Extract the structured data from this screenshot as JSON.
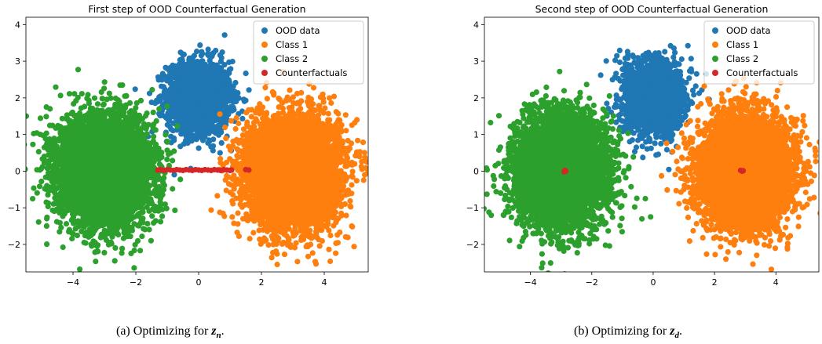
{
  "chart_data": [
    {
      "type": "scatter",
      "title": "First step of OOD Counterfactual Generation",
      "xlabel": "",
      "ylabel": "",
      "xlim": [
        -5.5,
        5.4
      ],
      "ylim": [
        -2.75,
        4.2
      ],
      "xticks": [
        -4,
        -2,
        0,
        2,
        4
      ],
      "yticks": [
        -2,
        -1,
        0,
        1,
        2,
        3,
        4
      ],
      "grid": false,
      "legend_position": "top-right",
      "series": [
        {
          "name": "OOD data",
          "color": "#1f77b4",
          "center": [
            0,
            2
          ],
          "spread": [
            0.5,
            0.5
          ],
          "count": 1800
        },
        {
          "name": "Class 1",
          "color": "#ff7f0e",
          "center": [
            3,
            0
          ],
          "spread": [
            0.72,
            0.72
          ],
          "count": 6000
        },
        {
          "name": "Class 2",
          "color": "#2ca02c",
          "center": [
            -3,
            0
          ],
          "spread": [
            0.72,
            0.72
          ],
          "count": 6000
        },
        {
          "name": "Counterfactuals",
          "color": "#d62728",
          "points": [
            [
              -1.3,
              0.03
            ],
            [
              -1.2,
              0.04
            ],
            [
              -1.1,
              0.02
            ],
            [
              -1.0,
              0.04
            ],
            [
              -0.9,
              0.03
            ],
            [
              -0.8,
              0.02
            ],
            [
              -0.7,
              0.04
            ],
            [
              -0.6,
              0.03
            ],
            [
              -0.5,
              0.02
            ],
            [
              -0.4,
              0.04
            ],
            [
              -0.3,
              0.03
            ],
            [
              -0.2,
              0.02
            ],
            [
              -0.1,
              0.04
            ],
            [
              0.0,
              0.03
            ],
            [
              0.1,
              0.02
            ],
            [
              0.2,
              0.04
            ],
            [
              0.3,
              0.03
            ],
            [
              0.4,
              0.02
            ],
            [
              0.5,
              0.04
            ],
            [
              0.6,
              0.03
            ],
            [
              0.7,
              0.02
            ],
            [
              0.8,
              0.04
            ],
            [
              0.9,
              0.03
            ],
            [
              1.0,
              0.02
            ],
            [
              1.05,
              0.03
            ],
            [
              1.5,
              0.04
            ],
            [
              1.6,
              0.03
            ]
          ]
        }
      ]
    },
    {
      "type": "scatter",
      "title": "Second step of OOD Counterfactual Generation",
      "xlabel": "",
      "ylabel": "",
      "xlim": [
        -5.5,
        5.4
      ],
      "ylim": [
        -2.75,
        4.2
      ],
      "xticks": [
        -4,
        -2,
        0,
        2,
        4
      ],
      "yticks": [
        -2,
        -1,
        0,
        1,
        2,
        3,
        4
      ],
      "grid": false,
      "legend_position": "top-right",
      "series": [
        {
          "name": "OOD data",
          "color": "#1f77b4",
          "center": [
            0,
            2
          ],
          "spread": [
            0.5,
            0.5
          ],
          "count": 1800
        },
        {
          "name": "Class 1",
          "color": "#ff7f0e",
          "center": [
            3,
            0
          ],
          "spread": [
            0.72,
            0.72
          ],
          "count": 6000
        },
        {
          "name": "Class 2",
          "color": "#2ca02c",
          "center": [
            -3,
            0
          ],
          "spread": [
            0.72,
            0.72
          ],
          "count": 6000
        },
        {
          "name": "Counterfactuals",
          "color": "#d62728",
          "points": [
            [
              -2.88,
              0.02
            ],
            [
              -2.85,
              0.0
            ],
            [
              -2.9,
              -0.02
            ],
            [
              2.85,
              0.02
            ],
            [
              2.9,
              0.0
            ],
            [
              2.93,
              0.01
            ]
          ]
        }
      ]
    }
  ],
  "captions": [
    {
      "prefix": "(a) Optimizing for ",
      "var": "z",
      "sub": "n",
      "suffix": "."
    },
    {
      "prefix": "(b) Optimizing for ",
      "var": "z",
      "sub": "d",
      "suffix": "."
    }
  ]
}
